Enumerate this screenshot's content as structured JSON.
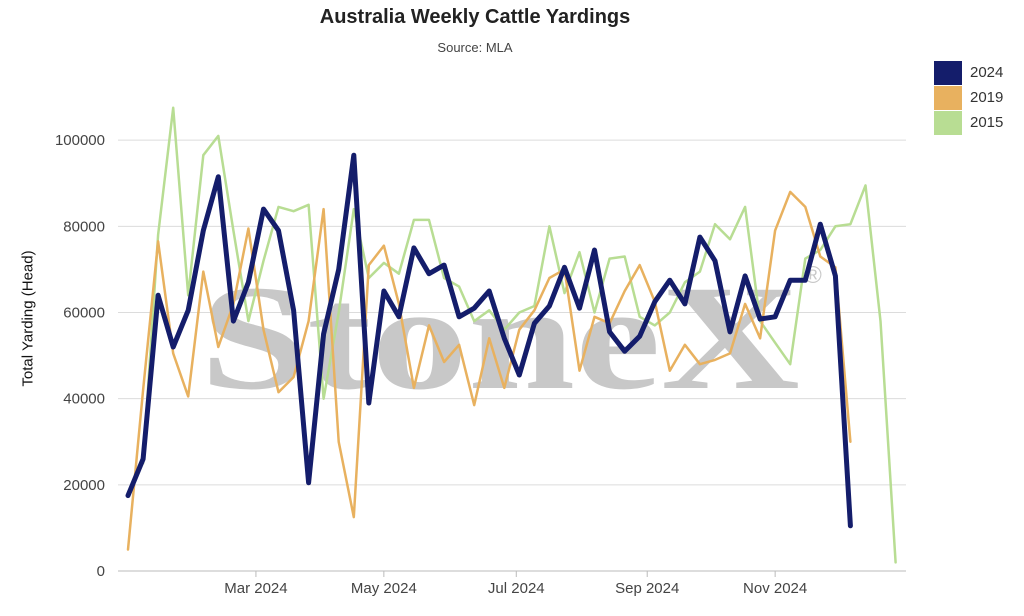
{
  "chart_data": {
    "type": "line",
    "title": "Australia Weekly Cattle Yardings",
    "subtitle": "Source: MLA",
    "ylabel": "Total Yarding (Head)",
    "xlabel": "",
    "ylim": [
      0,
      107000
    ],
    "y_ticks": [
      0,
      20000,
      40000,
      60000,
      80000,
      100000
    ],
    "x_ticks": [
      {
        "label": "Mar 2024",
        "week": 8.5
      },
      {
        "label": "May 2024",
        "week": 17.0
      },
      {
        "label": "Jul 2024",
        "week": 25.8
      },
      {
        "label": "Sep 2024",
        "week": 34.5
      },
      {
        "label": "Nov 2024",
        "week": 43.0
      }
    ],
    "x_range_weeks": [
      0,
      53
    ],
    "watermark": "StoneX",
    "watermark_mark": "®",
    "grid": true,
    "legend_position": "top-right",
    "series": [
      {
        "name": "2015",
        "color": "#b8dd93",
        "width": 2.5,
        "values": [
          null,
          25000,
          78000,
          107500,
          64000,
          96500,
          101000,
          79000,
          58000,
          72000,
          84500,
          83500,
          85000,
          40000,
          60000,
          84000,
          68000,
          71500,
          69000,
          81500,
          81500,
          68000,
          66000,
          58000,
          60500,
          56000,
          60000,
          61500,
          80000,
          64500,
          74000,
          60000,
          72500,
          73000,
          59000,
          57000,
          60000,
          67000,
          69500,
          80500,
          77000,
          84500,
          58000,
          53000,
          48000,
          72500,
          74500,
          80000,
          80500,
          89500,
          58000,
          2000
        ]
      },
      {
        "name": "2019",
        "color": "#e8b15f",
        "width": 2.5,
        "values": [
          5000,
          42000,
          76500,
          50500,
          40500,
          69500,
          52000,
          62000,
          79500,
          56000,
          41500,
          45000,
          58000,
          84000,
          30000,
          12500,
          71000,
          75500,
          62000,
          42500,
          57000,
          48500,
          52500,
          38500,
          54000,
          42500,
          56000,
          60500,
          68000,
          70000,
          46500,
          59000,
          57500,
          65000,
          71000,
          62500,
          46500,
          52500,
          48000,
          49000,
          50500,
          62000,
          54000,
          79000,
          88000,
          84500,
          73000,
          70500,
          30000
        ]
      },
      {
        "name": "2024",
        "color": "#141d6b",
        "width": 5,
        "values": [
          17500,
          26000,
          64000,
          52000,
          60500,
          79000,
          91500,
          58000,
          67000,
          84000,
          79000,
          60500,
          20500,
          55000,
          70000,
          96500,
          39000,
          65000,
          59000,
          75000,
          69000,
          71000,
          59000,
          61000,
          65000,
          54000,
          45500,
          57500,
          61500,
          70500,
          61000,
          74500,
          55500,
          51000,
          54500,
          62500,
          67500,
          62000,
          77500,
          72000,
          55500,
          68500,
          58500,
          59000,
          67500,
          67500,
          80500,
          68500,
          10500
        ]
      }
    ]
  }
}
